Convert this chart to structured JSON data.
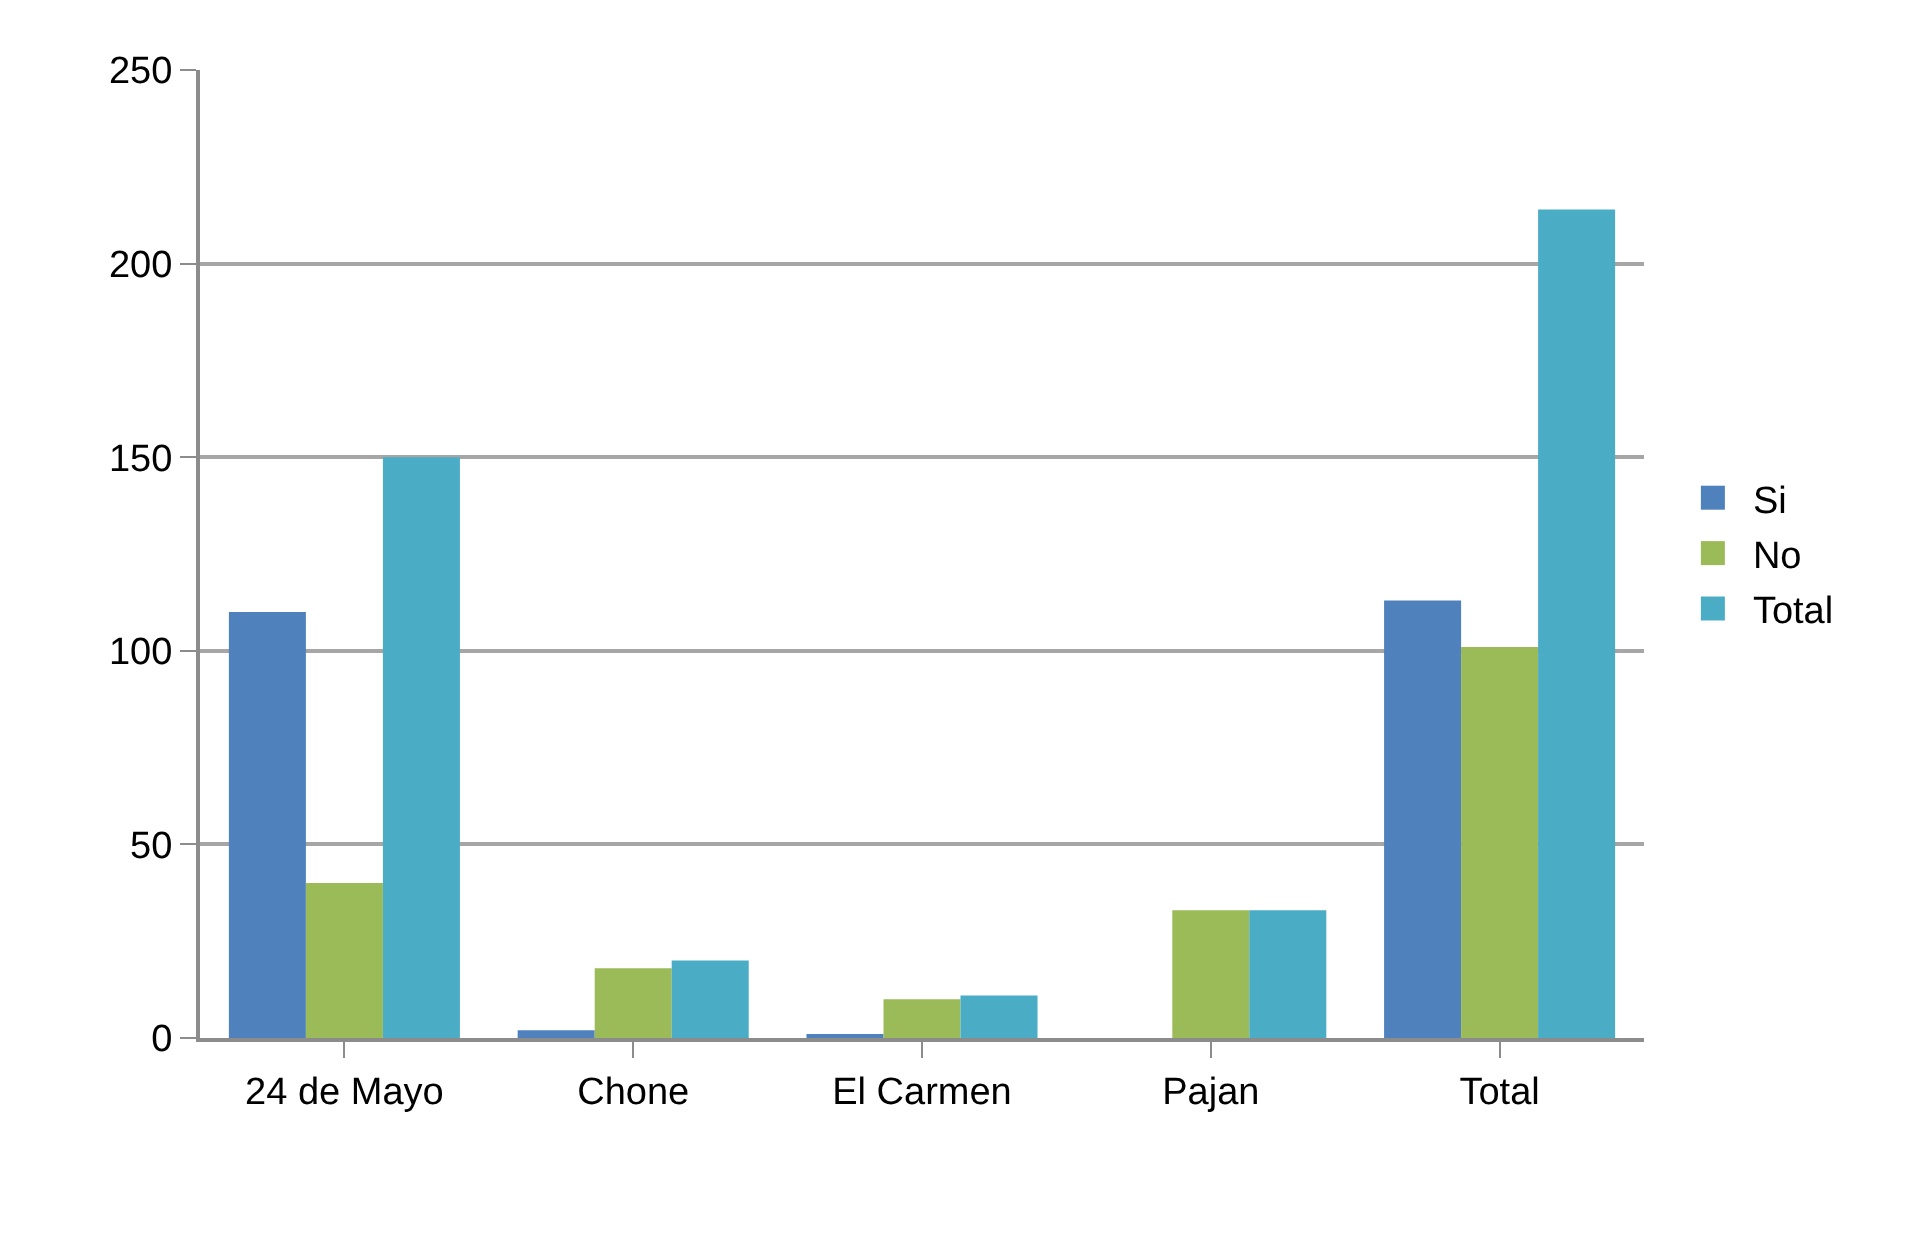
{
  "chart_data": {
    "type": "bar",
    "categories": [
      "24 de Mayo",
      "Chone",
      "El Carmen",
      "Pajan",
      "Total"
    ],
    "series": [
      {
        "name": "Si",
        "color": "#4f81bd",
        "values": [
          110,
          2,
          1,
          0,
          113
        ]
      },
      {
        "name": "No",
        "color": "#9bbb59",
        "values": [
          40,
          18,
          10,
          33,
          101
        ]
      },
      {
        "name": "Total",
        "color": "#4bacc6",
        "values": [
          150,
          20,
          11,
          33,
          214
        ]
      }
    ],
    "ylim": [
      0,
      250
    ],
    "yticks": [
      0,
      50,
      100,
      150,
      200,
      250
    ],
    "grid": "y",
    "legend": "right"
  }
}
